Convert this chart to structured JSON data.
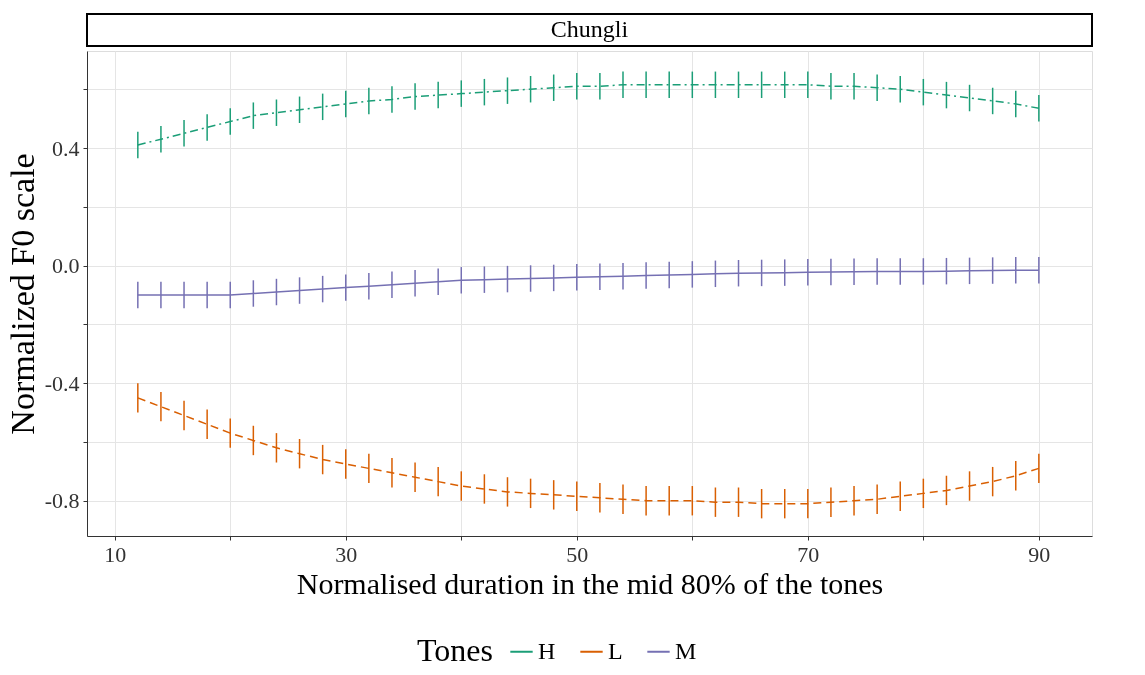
{
  "chart_data": {
    "type": "line",
    "title": "Chungli",
    "xlabel": "Normalised duration in the mid 80% of the tones",
    "ylabel": "Normalized F0 scale",
    "legend_title": "Tones",
    "x": [
      12,
      14,
      16,
      18,
      20,
      22,
      24,
      26,
      28,
      30,
      32,
      34,
      36,
      38,
      40,
      42,
      44,
      46,
      48,
      50,
      52,
      54,
      56,
      58,
      60,
      62,
      64,
      66,
      68,
      70,
      72,
      74,
      76,
      78,
      80,
      82,
      84,
      86,
      88,
      90
    ],
    "series": [
      {
        "name": "H",
        "color": "#1b9e77",
        "line_style": "dashdot",
        "values": [
          0.41,
          0.43,
          0.45,
          0.47,
          0.49,
          0.51,
          0.52,
          0.53,
          0.54,
          0.55,
          0.56,
          0.565,
          0.575,
          0.58,
          0.585,
          0.59,
          0.595,
          0.6,
          0.605,
          0.61,
          0.61,
          0.615,
          0.615,
          0.615,
          0.615,
          0.615,
          0.615,
          0.615,
          0.615,
          0.615,
          0.61,
          0.61,
          0.605,
          0.6,
          0.59,
          0.58,
          0.57,
          0.56,
          0.55,
          0.535
        ],
        "errors": [
          0.045,
          0.045,
          0.045,
          0.045,
          0.045,
          0.045,
          0.045,
          0.045,
          0.045,
          0.045,
          0.045,
          0.045,
          0.045,
          0.045,
          0.045,
          0.045,
          0.045,
          0.045,
          0.045,
          0.045,
          0.045,
          0.045,
          0.045,
          0.045,
          0.045,
          0.045,
          0.045,
          0.045,
          0.045,
          0.045,
          0.045,
          0.045,
          0.045,
          0.045,
          0.045,
          0.045,
          0.045,
          0.045,
          0.045,
          0.045
        ]
      },
      {
        "name": "L",
        "color": "#d95f02",
        "line_style": "dashed",
        "values": [
          -0.45,
          -0.48,
          -0.51,
          -0.54,
          -0.57,
          -0.595,
          -0.62,
          -0.64,
          -0.66,
          -0.675,
          -0.69,
          -0.705,
          -0.72,
          -0.735,
          -0.75,
          -0.76,
          -0.77,
          -0.775,
          -0.78,
          -0.785,
          -0.79,
          -0.795,
          -0.8,
          -0.8,
          -0.8,
          -0.805,
          -0.805,
          -0.81,
          -0.81,
          -0.81,
          -0.805,
          -0.8,
          -0.795,
          -0.785,
          -0.775,
          -0.765,
          -0.75,
          -0.735,
          -0.715,
          -0.69
        ],
        "errors": [
          0.05,
          0.05,
          0.05,
          0.05,
          0.05,
          0.05,
          0.05,
          0.05,
          0.05,
          0.05,
          0.05,
          0.05,
          0.05,
          0.05,
          0.05,
          0.05,
          0.05,
          0.05,
          0.05,
          0.05,
          0.05,
          0.05,
          0.05,
          0.05,
          0.05,
          0.05,
          0.05,
          0.05,
          0.05,
          0.05,
          0.05,
          0.05,
          0.05,
          0.05,
          0.05,
          0.05,
          0.05,
          0.05,
          0.05,
          0.05
        ]
      },
      {
        "name": "M",
        "color": "#7570b3",
        "line_style": "solid",
        "values": [
          -0.1,
          -0.1,
          -0.1,
          -0.1,
          -0.1,
          -0.095,
          -0.09,
          -0.085,
          -0.08,
          -0.075,
          -0.07,
          -0.065,
          -0.06,
          -0.055,
          -0.05,
          -0.048,
          -0.046,
          -0.044,
          -0.042,
          -0.04,
          -0.038,
          -0.036,
          -0.034,
          -0.032,
          -0.03,
          -0.028,
          -0.026,
          -0.025,
          -0.024,
          -0.023,
          -0.022,
          -0.021,
          -0.02,
          -0.02,
          -0.02,
          -0.019,
          -0.018,
          -0.017,
          -0.016,
          -0.016
        ],
        "errors": [
          0.045,
          0.045,
          0.045,
          0.045,
          0.045,
          0.045,
          0.045,
          0.045,
          0.045,
          0.045,
          0.045,
          0.045,
          0.045,
          0.045,
          0.045,
          0.045,
          0.045,
          0.045,
          0.045,
          0.045,
          0.045,
          0.045,
          0.045,
          0.045,
          0.045,
          0.045,
          0.045,
          0.045,
          0.045,
          0.045,
          0.045,
          0.045,
          0.045,
          0.045,
          0.045,
          0.045,
          0.045,
          0.045,
          0.045,
          0.045
        ]
      }
    ],
    "xlim": [
      7.6,
      94.6
    ],
    "xticks": [
      10,
      {
        "value": 20,
        "label": null
      },
      30,
      {
        "value": 40,
        "label": null
      },
      50,
      {
        "value": 60,
        "label": null
      },
      70,
      {
        "value": 80,
        "label": null
      },
      90
    ],
    "ylim": [
      -0.92,
      0.73
    ],
    "yticks": [
      {
        "value": -0.8,
        "label": "-0.8"
      },
      {
        "value": -0.6,
        "label": null
      },
      {
        "value": -0.4,
        "label": "-0.4"
      },
      {
        "value": -0.2,
        "label": null
      },
      {
        "value": 0,
        "label": "0.0"
      },
      {
        "value": 0.2,
        "label": null
      },
      {
        "value": 0.4,
        "label": "0.4"
      },
      {
        "value": 0.6,
        "label": null
      }
    ],
    "grid": true,
    "legend": "bottom",
    "marker": "none"
  }
}
